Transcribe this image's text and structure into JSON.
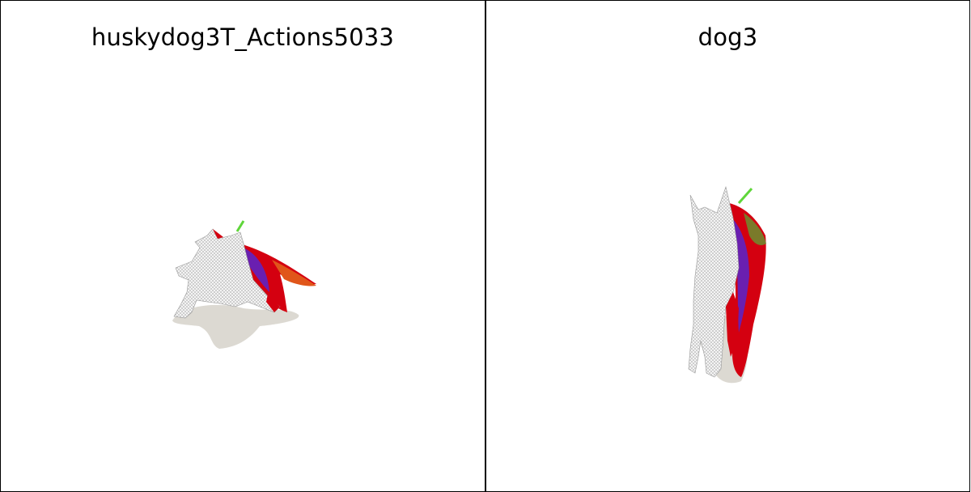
{
  "panels": [
    {
      "title": "huskydog3T_Actions5033"
    },
    {
      "title": "dog3"
    }
  ],
  "colors": {
    "shadow": "#dcd9d2",
    "mesh_white": "#f2f2f2",
    "mesh_line": "#9a9a9a",
    "red": "#d40010",
    "purple": "#6a1fb0",
    "orange": "#e0561a",
    "green": "#5fd63a",
    "olive": "#7a7a2a"
  }
}
